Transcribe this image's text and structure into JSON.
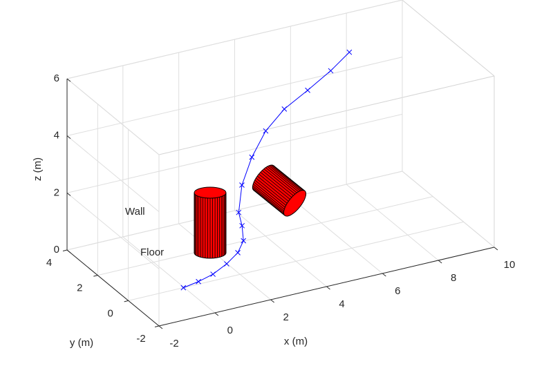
{
  "chart_data": {
    "type": "line3d",
    "xlabel": "x (m)",
    "ylabel": "y (m)",
    "zlabel": "z (m)",
    "xlim": [
      -2,
      10
    ],
    "ylim": [
      -2,
      4
    ],
    "zlim": [
      0,
      6
    ],
    "xticks": [
      -2,
      0,
      2,
      4,
      6,
      8,
      10
    ],
    "yticks": [
      -2,
      0,
      2,
      4
    ],
    "zticks": [
      0,
      2,
      4,
      6
    ],
    "grid": true,
    "color": "#0000ff",
    "x": [
      -0.03,
      0.51,
      1.03,
      1.52,
      1.92,
      2.12,
      2.07,
      1.95,
      2.34,
      2.97,
      3.74,
      4.68,
      5.79,
      6.89,
      7.83
    ],
    "y": [
      0,
      0,
      0,
      0,
      0,
      0,
      0,
      0,
      0.5,
      1,
      1.5,
      2,
      2.5,
      3,
      3.5
    ],
    "z": [
      0,
      0.09,
      0.23,
      0.48,
      0.78,
      1.15,
      1.69,
      2.18,
      2.83,
      3.44,
      3.96,
      4.29,
      4.47,
      4.68,
      4.89
    ],
    "annotations": [
      "Wall",
      "Floor"
    ]
  }
}
